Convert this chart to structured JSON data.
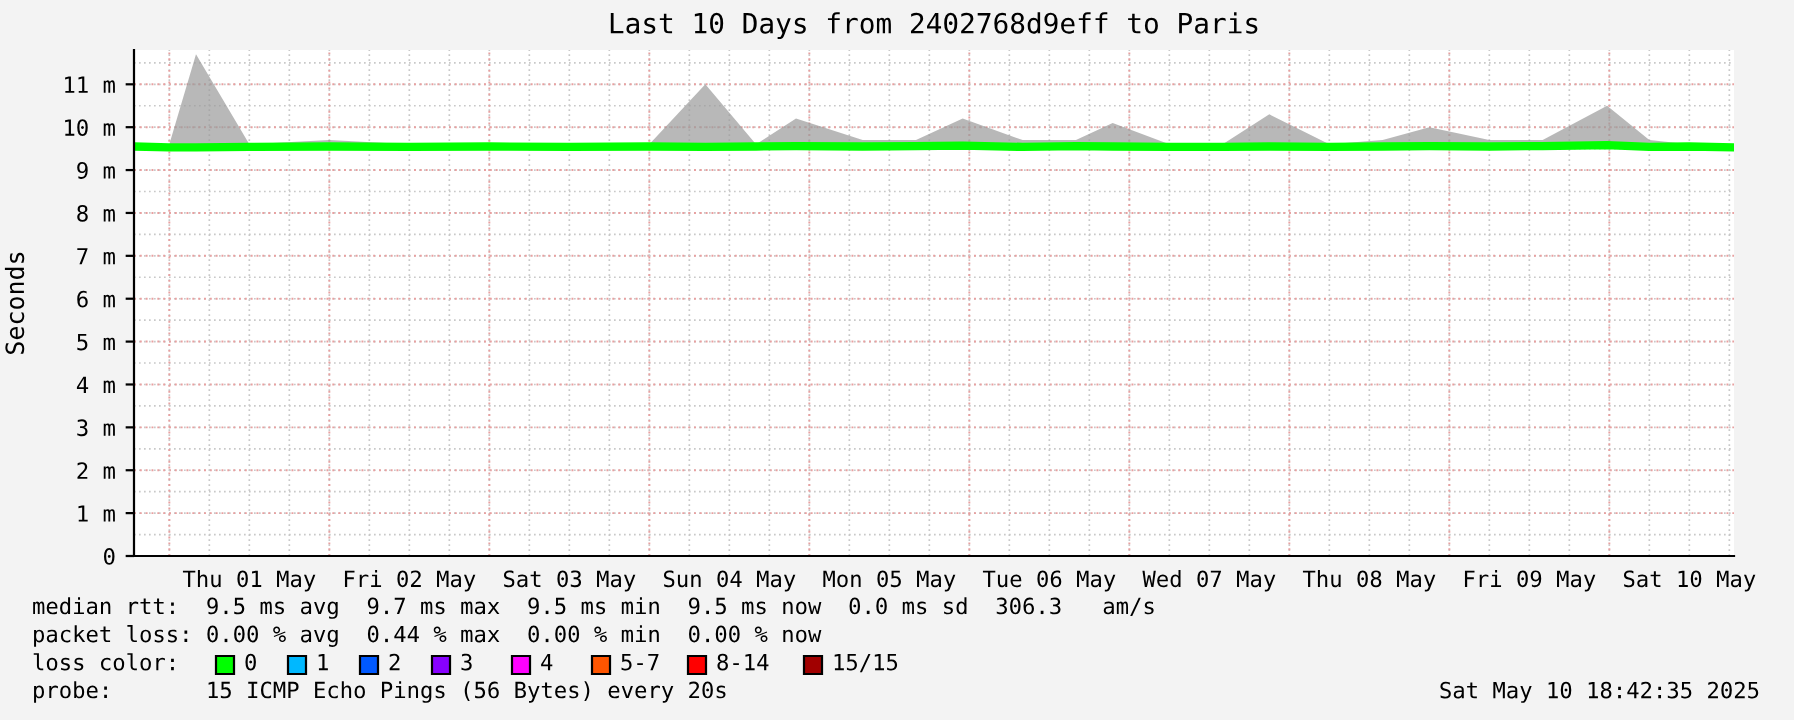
{
  "chart_data": {
    "type": "line",
    "title": "Last 10 Days from 2402768d9eff to Paris",
    "ylabel": "Seconds",
    "xlim": [
      "2025-04-30T18:42",
      "2025-05-10T18:42"
    ],
    "xticks": [
      {
        "value": "2025-05-01T12:00",
        "label": "Thu 01 May"
      },
      {
        "value": "2025-05-02T12:00",
        "label": "Fri 02 May"
      },
      {
        "value": "2025-05-03T12:00",
        "label": "Sat 03 May"
      },
      {
        "value": "2025-05-04T12:00",
        "label": "Sun 04 May"
      },
      {
        "value": "2025-05-05T12:00",
        "label": "Mon 05 May"
      },
      {
        "value": "2025-05-06T12:00",
        "label": "Tue 06 May"
      },
      {
        "value": "2025-05-07T12:00",
        "label": "Wed 07 May"
      },
      {
        "value": "2025-05-08T12:00",
        "label": "Thu 08 May"
      },
      {
        "value": "2025-05-09T12:00",
        "label": "Fri 09 May"
      },
      {
        "value": "2025-05-10T12:00",
        "label": "Sat 10 May"
      }
    ],
    "ylim": [
      0,
      11.8
    ],
    "yticks": [
      0,
      {
        "value": 1,
        "label": "1 m"
      },
      {
        "value": 2,
        "label": "2 m"
      },
      {
        "value": 3,
        "label": "3 m"
      },
      {
        "value": 4,
        "label": "4 m"
      },
      {
        "value": 5,
        "label": "5 m"
      },
      {
        "value": 6,
        "label": "6 m"
      },
      {
        "value": 7,
        "label": "7 m"
      },
      {
        "value": 8,
        "label": "8 m"
      },
      {
        "value": 9,
        "label": "9 m"
      },
      {
        "value": 10,
        "label": "10 m"
      },
      {
        "value": 11,
        "label": "11 m"
      }
    ],
    "grid": true,
    "legend": false,
    "x": [
      "2025-04-30T18:42",
      "2025-05-01T00:00",
      "2025-05-01T04:00",
      "2025-05-01T12:00",
      "2025-05-02T00:00",
      "2025-05-02T12:00",
      "2025-05-03T00:00",
      "2025-05-03T12:00",
      "2025-05-04T00:00",
      "2025-05-04T08:24",
      "2025-05-04T16:00",
      "2025-05-04T22:00",
      "2025-05-05T08:00",
      "2025-05-05T16:00",
      "2025-05-05T23:00",
      "2025-05-06T08:00",
      "2025-05-06T16:00",
      "2025-05-06T21:30",
      "2025-05-07T06:00",
      "2025-05-07T14:00",
      "2025-05-07T21:00",
      "2025-05-08T06:00",
      "2025-05-08T14:00",
      "2025-05-08T21:00",
      "2025-05-09T06:00",
      "2025-05-09T14:00",
      "2025-05-09T23:40",
      "2025-05-10T06:00",
      "2025-05-10T12:00",
      "2025-05-10T18:42"
    ],
    "series": [
      {
        "color": "#00ff00",
        "values": [
          9.55,
          9.53,
          9.53,
          9.54,
          9.55,
          9.54,
          9.55,
          9.54,
          9.55,
          9.54,
          9.55,
          9.56,
          9.55,
          9.56,
          9.57,
          9.54,
          9.56,
          9.55,
          9.54,
          9.54,
          9.55,
          9.54,
          9.55,
          9.56,
          9.55,
          9.56,
          9.58,
          9.54,
          9.55,
          9.53
        ],
        "lower": [
          9.5,
          9.5,
          9.5,
          9.5,
          9.5,
          9.5,
          9.5,
          9.5,
          9.5,
          9.5,
          9.5,
          9.5,
          9.5,
          9.5,
          9.5,
          9.5,
          9.5,
          9.5,
          9.5,
          9.5,
          9.5,
          9.5,
          9.5,
          9.5,
          9.5,
          9.5,
          9.5,
          9.5,
          9.5,
          9.5
        ],
        "upper": [
          9.6,
          9.6,
          11.7,
          9.6,
          9.7,
          9.6,
          9.6,
          9.6,
          9.6,
          11.0,
          9.6,
          10.2,
          9.7,
          9.7,
          10.2,
          9.7,
          9.7,
          10.1,
          9.6,
          9.6,
          10.3,
          9.6,
          9.7,
          10.0,
          9.7,
          9.7,
          10.5,
          9.7,
          9.6,
          9.6
        ]
      }
    ],
    "annotations": [
      "median rtt:  9.5 ms avg  9.7 ms max  9.5 ms min  9.5 ms now  0.0 ms sd  306.3   am/s",
      "packet loss: 0.00 % avg  0.44 % max  0.00 % min  0.00 % now",
      "loss color:",
      "0",
      "1",
      "2",
      "3",
      "4",
      "5-7",
      "8-14",
      "15/15",
      "probe:       15 ICMP Echo Pings (56 Bytes) every 20s",
      "Sat May 10 18:42:35 2025"
    ]
  }
}
